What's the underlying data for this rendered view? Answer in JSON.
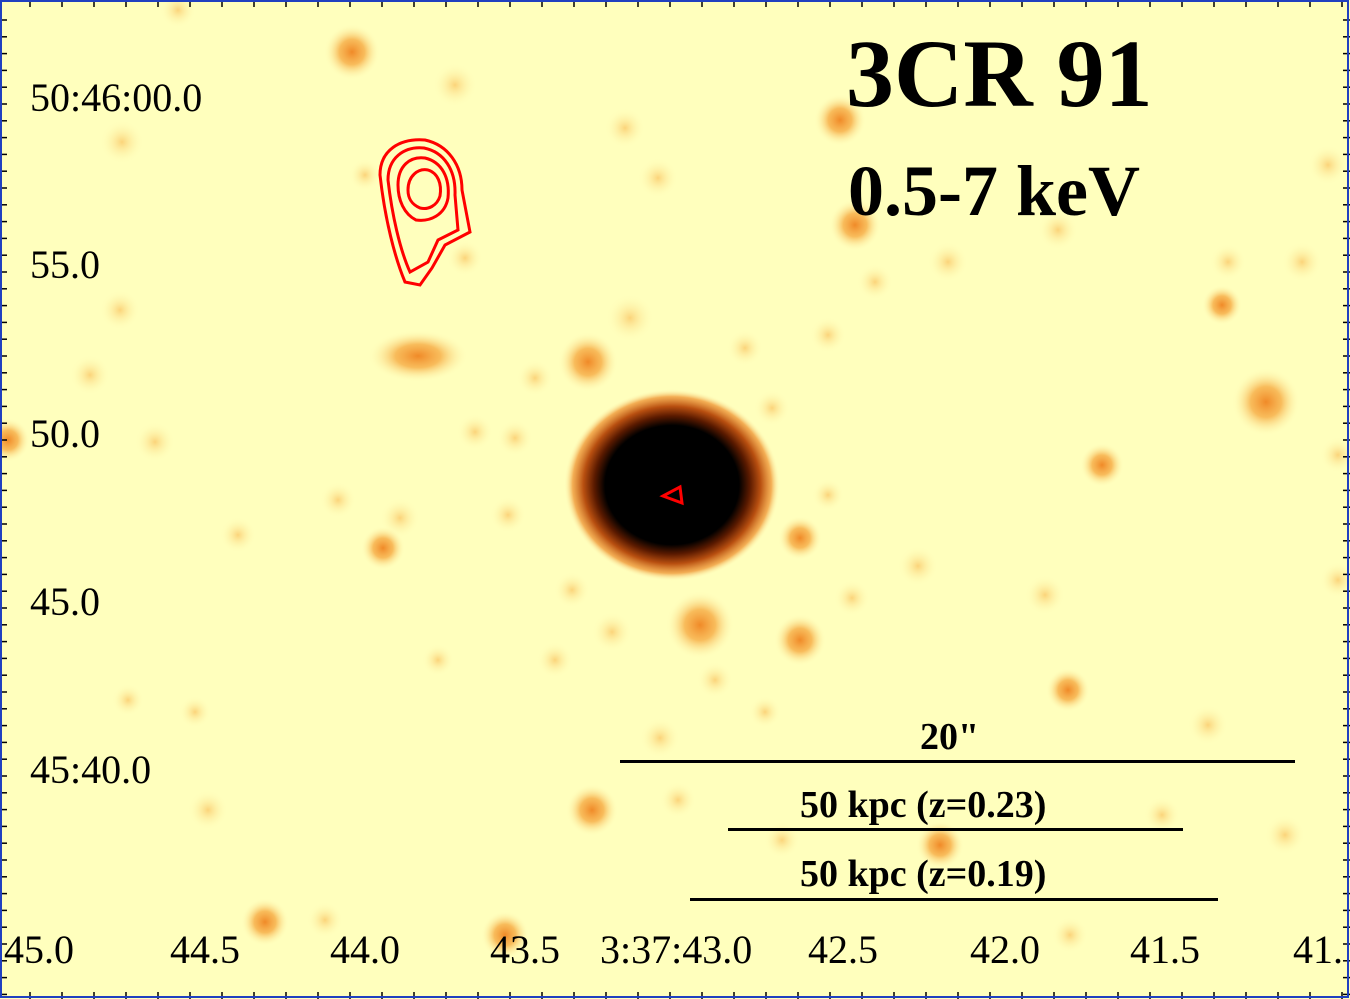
{
  "title": "3CR 91",
  "subtitle": "0.5-7 keV",
  "y_labels": [
    "50:46:00.0",
    "55.0",
    "50.0",
    "45.0",
    "45:40.0"
  ],
  "x_labels": [
    "45.0",
    "44.5",
    "44.0",
    "43.5",
    "3:37:43.0",
    "42.5",
    "42.0",
    "41.5",
    "41."
  ],
  "scale_bars": [
    "20\"",
    "50 kpc (z=0.23)",
    "50 kpc (z=0.19)"
  ],
  "colors": {
    "background": "#ffffbd",
    "contour": "#ff0000",
    "core": "#000000",
    "blob": "#f09030"
  }
}
